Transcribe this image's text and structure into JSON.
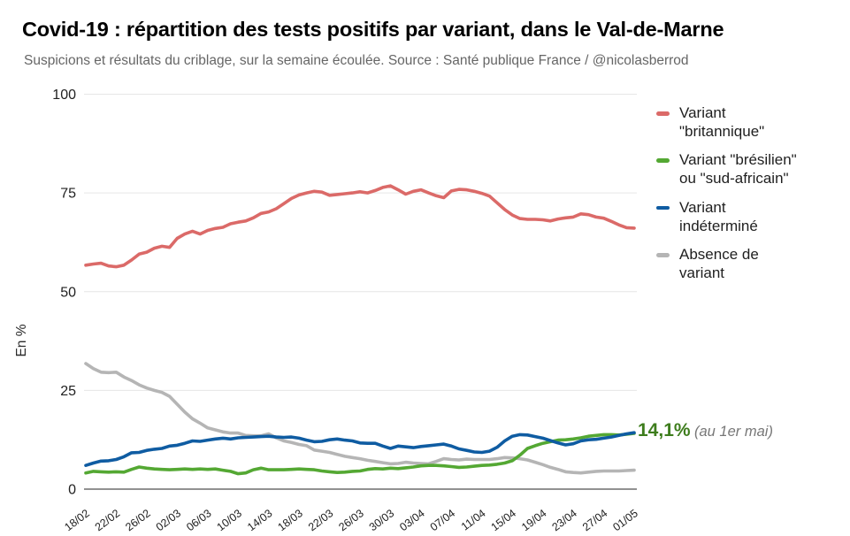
{
  "title": "Covid-19 : répartition des tests positifs par variant, dans le Val-de-Marne",
  "subtitle": "Suspicions et résultats du criblage, sur la semaine écoulée. Source : Santé publique France / @nicolasberrod",
  "chart_data": {
    "type": "line",
    "title": "Covid-19 : répartition des tests positifs par variant, dans le Val-de-Marne",
    "subtitle": "Suspicions et résultats du criblage, sur la semaine écoulée. Source : Santé publique France / @nicolasberrod",
    "ylabel": "En %",
    "ylim": [
      0,
      100
    ],
    "yticks": [
      0,
      25,
      50,
      75,
      100
    ],
    "grid": "horizontal",
    "legend_position": "right",
    "x_tick_labels": [
      "18/02",
      "22/02",
      "26/02",
      "02/03",
      "06/03",
      "10/03",
      "14/03",
      "18/03",
      "22/03",
      "26/03",
      "30/03",
      "03/04",
      "07/04",
      "11/04",
      "15/04",
      "19/04",
      "23/04",
      "27/04",
      "01/05"
    ],
    "x_tick_indices": [
      0,
      4,
      8,
      12,
      16,
      20,
      24,
      28,
      32,
      36,
      40,
      44,
      48,
      52,
      56,
      60,
      64,
      68,
      72
    ],
    "n_points": 73,
    "draw_order": [
      3,
      0,
      1,
      2
    ],
    "series": [
      {
        "name": "Variant \"britannique\"",
        "color": "#DB6A68",
        "values": [
          56.7,
          57.0,
          57.2,
          56.5,
          56.3,
          56.7,
          58.0,
          59.5,
          60.0,
          61.0,
          61.5,
          61.2,
          63.5,
          64.6,
          65.3,
          64.6,
          65.5,
          66.0,
          66.3,
          67.2,
          67.6,
          67.9,
          68.7,
          69.8,
          70.2,
          71.0,
          72.3,
          73.6,
          74.5,
          75.0,
          75.4,
          75.2,
          74.4,
          74.6,
          74.8,
          75.0,
          75.3,
          75.0,
          75.6,
          76.4,
          76.8,
          75.8,
          74.7,
          75.4,
          75.8,
          75.0,
          74.3,
          73.8,
          75.5,
          75.9,
          75.8,
          75.4,
          74.9,
          74.2,
          72.5,
          70.8,
          69.4,
          68.5,
          68.3,
          68.3,
          68.2,
          67.9,
          68.4,
          68.7,
          68.9,
          69.7,
          69.5,
          68.9,
          68.6,
          67.8,
          66.9,
          66.2,
          66.1
        ]
      },
      {
        "name": "Variant \"brésilien\" ou \"sud-africain\"",
        "color": "#54A833",
        "values": [
          4.1,
          4.5,
          4.4,
          4.3,
          4.4,
          4.3,
          5.0,
          5.6,
          5.3,
          5.1,
          5.0,
          4.9,
          5.0,
          5.1,
          5.0,
          5.1,
          5.0,
          5.1,
          4.8,
          4.5,
          3.9,
          4.1,
          4.9,
          5.3,
          4.9,
          4.9,
          4.9,
          5.0,
          5.1,
          5.0,
          4.9,
          4.6,
          4.4,
          4.2,
          4.3,
          4.5,
          4.6,
          5.0,
          5.2,
          5.1,
          5.3,
          5.2,
          5.4,
          5.6,
          5.9,
          6.0,
          6.0,
          5.9,
          5.7,
          5.5,
          5.6,
          5.8,
          6.0,
          6.1,
          6.3,
          6.6,
          7.2,
          8.6,
          10.3,
          11.0,
          11.6,
          12.0,
          12.4,
          12.5,
          12.7,
          13.0,
          13.4,
          13.6,
          13.8,
          13.8,
          13.7,
          13.9,
          14.1
        ]
      },
      {
        "name": "Variant indéterminé",
        "color": "#0F5CA2",
        "values": [
          6.0,
          6.6,
          7.1,
          7.2,
          7.5,
          8.2,
          9.2,
          9.3,
          9.8,
          10.1,
          10.3,
          10.9,
          11.1,
          11.6,
          12.2,
          12.1,
          12.4,
          12.7,
          12.9,
          12.7,
          13.0,
          13.1,
          13.2,
          13.3,
          13.4,
          13.2,
          13.1,
          13.2,
          12.9,
          12.4,
          12.0,
          12.1,
          12.5,
          12.7,
          12.4,
          12.2,
          11.7,
          11.6,
          11.6,
          10.9,
          10.3,
          10.9,
          10.7,
          10.5,
          10.8,
          11.0,
          11.2,
          11.4,
          10.9,
          10.2,
          9.8,
          9.4,
          9.3,
          9.6,
          10.6,
          12.2,
          13.4,
          13.8,
          13.7,
          13.3,
          12.9,
          12.3,
          11.7,
          11.2,
          11.5,
          12.2,
          12.5,
          12.6,
          12.9,
          13.2,
          13.6,
          14.0,
          14.3
        ]
      },
      {
        "name": "Absence de variant",
        "color": "#B5B5B5",
        "values": [
          31.8,
          30.5,
          29.6,
          29.5,
          29.6,
          28.4,
          27.5,
          26.4,
          25.6,
          25.0,
          24.5,
          23.5,
          21.5,
          19.5,
          17.8,
          16.7,
          15.5,
          15.0,
          14.5,
          14.2,
          14.2,
          13.6,
          13.5,
          13.5,
          14.0,
          13.0,
          12.2,
          11.8,
          11.3,
          11.0,
          9.9,
          9.6,
          9.3,
          8.8,
          8.3,
          8.0,
          7.7,
          7.3,
          7.0,
          6.7,
          6.4,
          6.5,
          6.8,
          6.6,
          6.5,
          6.4,
          7.0,
          7.7,
          7.5,
          7.4,
          7.6,
          7.5,
          7.5,
          7.5,
          7.7,
          8.0,
          7.9,
          7.7,
          7.4,
          6.8,
          6.2,
          5.5,
          5.0,
          4.4,
          4.2,
          4.1,
          4.3,
          4.5,
          4.6,
          4.6,
          4.6,
          4.7,
          4.8
        ]
      }
    ],
    "annotation": {
      "value": "14,1%",
      "note": "(au 1er mai)",
      "color": "#3E7D1D"
    }
  },
  "legend": {
    "items": [
      {
        "lines": [
          "Variant",
          "\"britannique\""
        ],
        "color": "#DB6A68"
      },
      {
        "lines": [
          "Variant \"brésilien\"",
          "ou \"sud-africain\""
        ],
        "color": "#54A833"
      },
      {
        "lines": [
          "Variant",
          "indéterminé"
        ],
        "color": "#0F5CA2"
      },
      {
        "lines": [
          "Absence de",
          "variant"
        ],
        "color": "#B5B5B5"
      }
    ]
  }
}
